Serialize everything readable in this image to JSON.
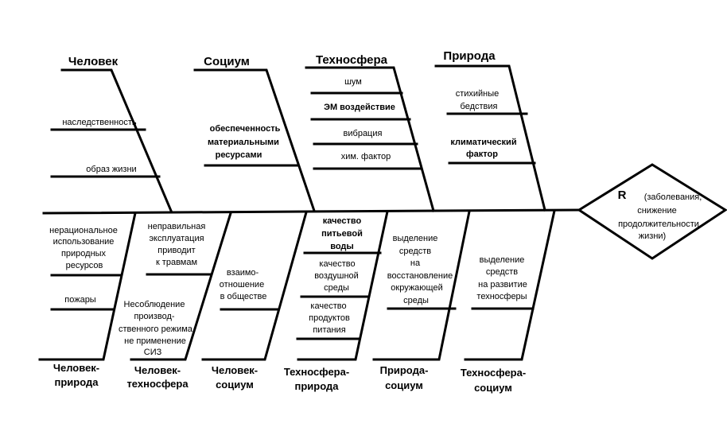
{
  "upper": [
    {
      "title": "Человек",
      "items": [
        [
          "наследственность"
        ],
        [
          "образ жизни"
        ]
      ]
    },
    {
      "title": "Социум",
      "items": [
        [
          "обеспеченность",
          "материальными",
          "ресурсами"
        ]
      ]
    },
    {
      "title": "Техносфера",
      "items": [
        [
          "шум"
        ],
        [
          "ЭМ воздействие"
        ],
        [
          "вибрация"
        ],
        [
          "хим. фактор"
        ]
      ]
    },
    {
      "title": "Природа",
      "items": [
        [
          "стихийные",
          "бедствия"
        ],
        [
          "климатический",
          "фактор"
        ]
      ]
    }
  ],
  "lower": [
    {
      "title": [
        "Человек-",
        "природа"
      ],
      "items": [
        [
          "нерациональное",
          "использование",
          "природных",
          "ресурсов"
        ],
        [
          "пожары"
        ]
      ]
    },
    {
      "title": [
        "Человек-",
        "техносфера"
      ],
      "items": [
        [
          "неправильная",
          "эксплуатация",
          "приводит",
          "к травмам"
        ],
        [
          "Несоблюдение",
          "производ-",
          "ственного режима,",
          "не применение",
          "СИЗ"
        ]
      ]
    },
    {
      "title": [
        "Человек-",
        "социум"
      ],
      "items": [
        [
          "взаимо-",
          "отношение",
          "в обществе"
        ]
      ]
    },
    {
      "title": [
        "Техносфера-",
        "природа"
      ],
      "items": [
        [
          "качество",
          "питьевой",
          "воды"
        ],
        [
          "качество",
          "воздушной",
          "среды"
        ],
        [
          "качество",
          "продуктов",
          "питания"
        ]
      ]
    },
    {
      "title": [
        "Природа-",
        "социум"
      ],
      "items": [
        [
          "выделение",
          "средств",
          "на",
          "восстановление",
          "окружающей",
          "среды"
        ]
      ]
    },
    {
      "title": [
        "Техносфера-",
        "социум"
      ],
      "items": [
        [
          "выделение",
          "средств",
          "на развитие",
          "техносферы"
        ]
      ]
    }
  ],
  "result": {
    "letter": "R",
    "lines": [
      "(заболевания,",
      "снижение",
      "продолжительности",
      "жизни)"
    ]
  }
}
